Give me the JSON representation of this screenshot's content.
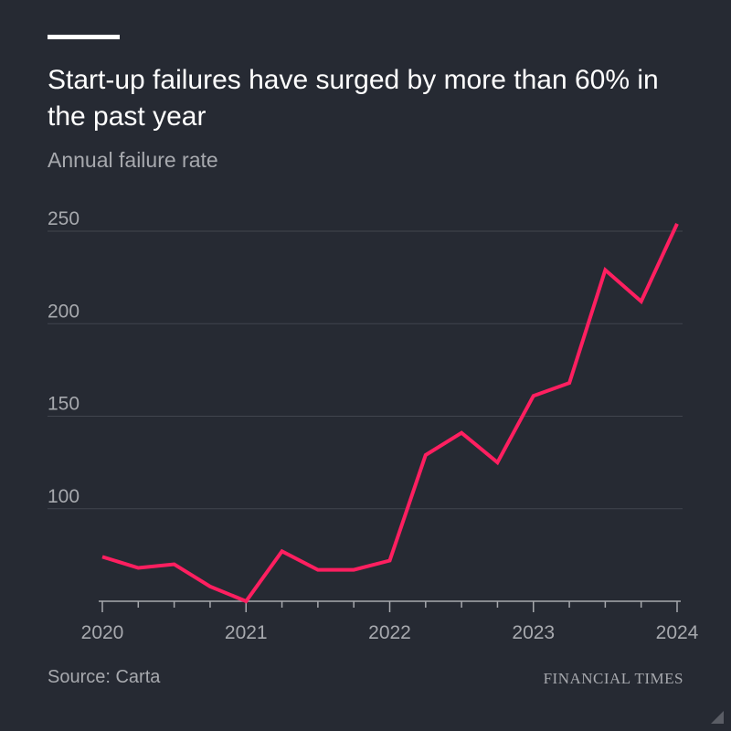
{
  "header": {
    "title": "Start-up failures have surged by more than 60% in the past year",
    "subtitle": "Annual failure rate"
  },
  "footer": {
    "source": "Source: Carta",
    "brand": "FINANCIAL TIMES"
  },
  "colors": {
    "background": "#262a33",
    "series": "#ff1f60",
    "gridline": "#41454e",
    "muted_text": "#a7a9ae"
  },
  "chart_data": {
    "type": "line",
    "title": "Start-up failures have surged by more than 60% in the past year",
    "subtitle": "Annual failure rate",
    "xlabel": "",
    "ylabel": "",
    "x": [
      "2020 Q1",
      "2020 Q2",
      "2020 Q3",
      "2020 Q4",
      "2021 Q1",
      "2021 Q2",
      "2021 Q3",
      "2021 Q4",
      "2022 Q1",
      "2022 Q2",
      "2022 Q3",
      "2022 Q4",
      "2023 Q1",
      "2023 Q2",
      "2023 Q3",
      "2023 Q4",
      "2024 Q1"
    ],
    "series": [
      {
        "values": [
          74,
          68,
          70,
          58,
          50,
          77,
          67,
          67,
          72,
          129,
          141,
          125,
          161,
          168,
          229,
          212,
          254
        ]
      }
    ],
    "x_ticks": [
      "2020",
      "2021",
      "2022",
      "2023",
      "2024"
    ],
    "y_ticks": [
      100,
      150,
      200,
      250
    ],
    "ylim": [
      50,
      260
    ],
    "grid": true,
    "legend": "none"
  }
}
